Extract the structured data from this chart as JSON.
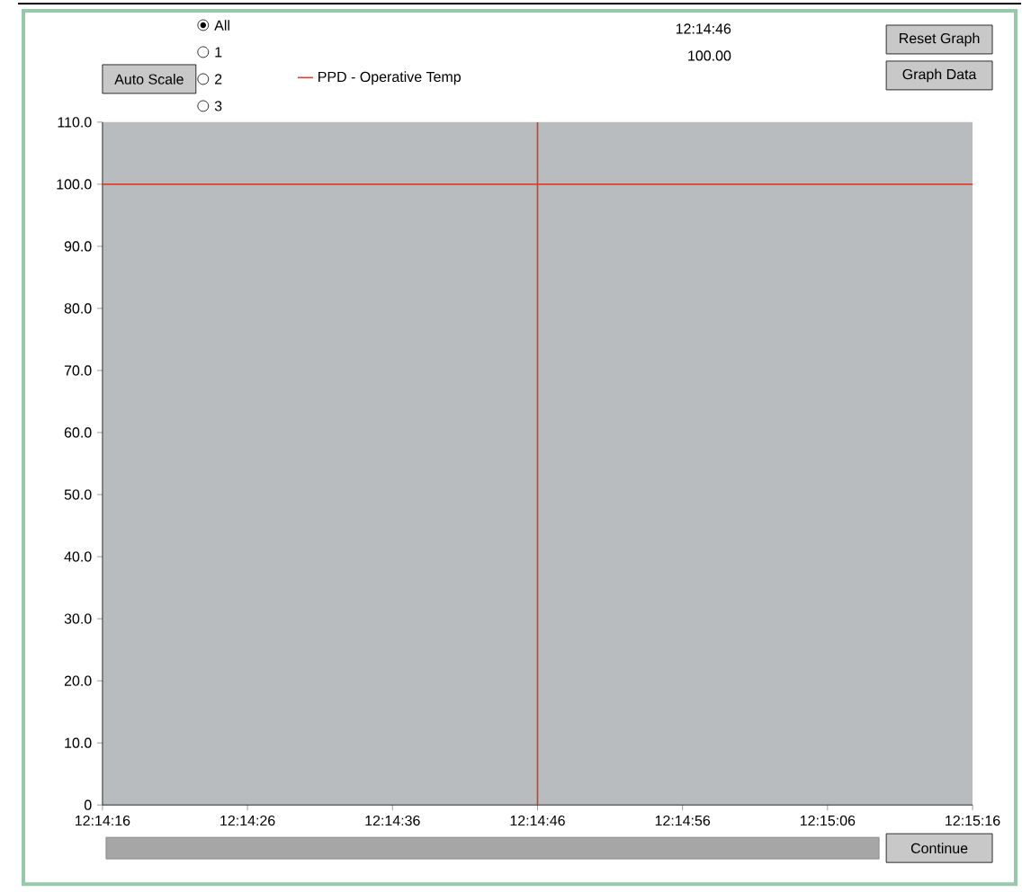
{
  "chart_data": {
    "type": "line",
    "series": [
      {
        "name": "PPD - Operative Temp",
        "color": "#e0402a",
        "x": [
          12.2377778,
          12.2544444
        ],
        "values": [
          100,
          100
        ]
      }
    ],
    "xlim": [
      12.2377778,
      12.2544444
    ],
    "xticks": [
      {
        "value": 12.2377778,
        "label": "12:14:16"
      },
      {
        "value": 12.2405556,
        "label": "12:14:26"
      },
      {
        "value": 12.2433333,
        "label": "12:14:36"
      },
      {
        "value": 12.2461111,
        "label": "12:14:46"
      },
      {
        "value": 12.2488889,
        "label": "12:14:56"
      },
      {
        "value": 12.2516667,
        "label": "12:15:06"
      },
      {
        "value": 12.2544444,
        "label": "12:15:16"
      }
    ],
    "ylim": [
      0,
      110
    ],
    "yticks": [
      0,
      {
        "value": 10,
        "label": "10.0"
      },
      {
        "value": 20,
        "label": "20.0"
      },
      {
        "value": 30,
        "label": "30.0"
      },
      {
        "value": 40,
        "label": "40.0"
      },
      {
        "value": 50,
        "label": "50.0"
      },
      {
        "value": 60,
        "label": "60.0"
      },
      {
        "value": 70,
        "label": "70.0"
      },
      {
        "value": 80,
        "label": "80.0"
      },
      {
        "value": 90,
        "label": "90.0"
      },
      {
        "value": 100,
        "label": "100.0"
      },
      {
        "value": 110,
        "label": "110.0"
      }
    ],
    "ref_lines": [
      {
        "axis": "x",
        "value": 12.2461111,
        "color": "#c8402a"
      }
    ],
    "legend": "top",
    "grid": false,
    "marker": "none",
    "line_style": "solid",
    "annotations": [
      "All",
      "1",
      "2",
      "3",
      "Auto Scale",
      "Reset Graph",
      "Graph Data",
      "Continue",
      "12:14:46",
      "100.00"
    ]
  }
}
